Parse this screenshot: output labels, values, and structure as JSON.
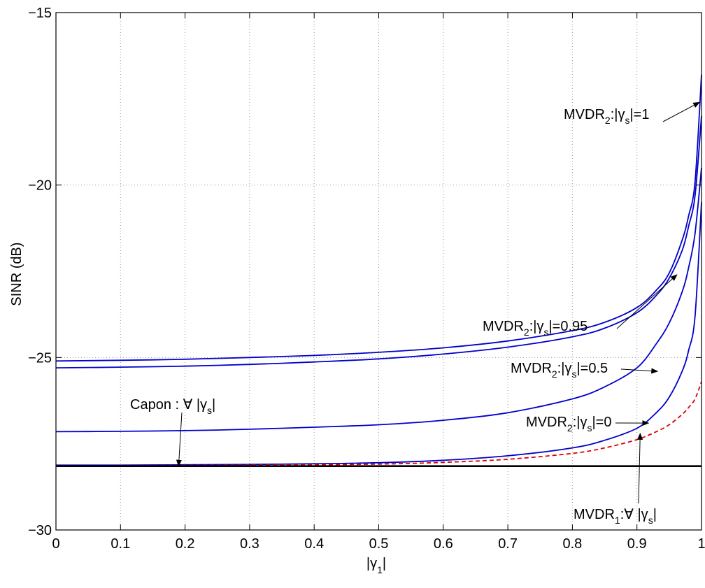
{
  "chart_data": {
    "type": "line",
    "title": "",
    "xlabel": {
      "main": "|γ",
      "sub": "1",
      "suffix": "|"
    },
    "ylabel": "SINR (dB)",
    "xlim": [
      0,
      1
    ],
    "ylim": [
      -30,
      -15
    ],
    "xticks": [
      "0",
      "0.1",
      "0.2",
      "0.3",
      "0.4",
      "0.5",
      "0.6",
      "0.7",
      "0.8",
      "0.9",
      "1"
    ],
    "yticks": [
      "-30",
      "-25",
      "-20",
      "-15"
    ],
    "grid": true,
    "colors": {
      "mvdr2": "#0000cc",
      "mvdr1": "#dd0000",
      "capon": "#000000"
    },
    "x": [
      0,
      0.1,
      0.2,
      0.3,
      0.4,
      0.5,
      0.6,
      0.7,
      0.8,
      0.85,
      0.9,
      0.93,
      0.95,
      0.97,
      0.98,
      0.99,
      1.0
    ],
    "series": [
      {
        "key": "g1",
        "style": "solid",
        "color": "#0000cc",
        "values": [
          -25.1,
          -25.08,
          -25.05,
          -25.0,
          -24.94,
          -24.85,
          -24.72,
          -24.52,
          -24.22,
          -23.98,
          -23.55,
          -23.05,
          -22.55,
          -21.6,
          -20.9,
          -19.9,
          -16.8
        ]
      },
      {
        "key": "g095",
        "style": "solid",
        "color": "#0000cc",
        "values": [
          -25.3,
          -25.28,
          -25.25,
          -25.2,
          -25.13,
          -25.04,
          -24.9,
          -24.7,
          -24.4,
          -24.15,
          -23.7,
          -23.2,
          -22.7,
          -21.9,
          -21.2,
          -20.3,
          -18.0
        ]
      },
      {
        "key": "g05",
        "style": "solid",
        "color": "#0000cc",
        "values": [
          -27.15,
          -27.14,
          -27.12,
          -27.08,
          -27.02,
          -26.95,
          -26.82,
          -26.6,
          -26.2,
          -25.85,
          -25.3,
          -24.6,
          -24.0,
          -23.1,
          -22.4,
          -21.4,
          -19.5
        ]
      },
      {
        "key": "g0",
        "style": "solid",
        "color": "#0000cc",
        "values": [
          -28.12,
          -28.12,
          -28.11,
          -28.1,
          -28.08,
          -28.05,
          -27.98,
          -27.85,
          -27.62,
          -27.4,
          -27.05,
          -26.6,
          -26.15,
          -25.4,
          -24.8,
          -23.8,
          -20.5
        ]
      },
      {
        "key": "mvdr1",
        "style": "dashed",
        "color": "#dd0000",
        "values": [
          -28.14,
          -28.14,
          -28.13,
          -28.12,
          -28.11,
          -28.09,
          -28.04,
          -27.95,
          -27.78,
          -27.62,
          -27.38,
          -27.15,
          -26.95,
          -26.65,
          -26.45,
          -26.2,
          -25.7
        ]
      },
      {
        "key": "capon",
        "style": "solid",
        "color": "#000000",
        "values": [
          -28.15,
          -28.15,
          -28.15,
          -28.15,
          -28.15,
          -28.15,
          -28.15,
          -28.15,
          -28.15,
          -28.15,
          -28.15,
          -28.15,
          -28.15,
          -28.15,
          -28.15,
          -28.15,
          -28.15
        ]
      }
    ],
    "annotations": [
      {
        "key": "a_g1",
        "main": "MVDR",
        "sub": "2",
        "rest": ":|γ",
        "sub2": "s",
        "tail": "|=1",
        "point": [
          0.997,
          -17.6
        ]
      },
      {
        "key": "a_g095",
        "main": "MVDR",
        "sub": "2",
        "rest": ":|γ",
        "sub2": "s",
        "tail": "|=0.95",
        "point": [
          0.962,
          -22.6
        ]
      },
      {
        "key": "a_g05",
        "main": "MVDR",
        "sub": "2",
        "rest": ":|γ",
        "sub2": "s",
        "tail": "|=0.5",
        "point": [
          0.932,
          -25.4
        ]
      },
      {
        "key": "a_g0",
        "main": "MVDR",
        "sub": "2",
        "rest": ":|γ",
        "sub2": "s",
        "tail": "|=0",
        "point": [
          0.918,
          -26.9
        ]
      },
      {
        "key": "a_capon",
        "main": "Capon : ∀ |γ",
        "sub": "",
        "rest": "",
        "sub2": "s",
        "tail": "|",
        "point": [
          0.19,
          -28.15
        ]
      },
      {
        "key": "a_mvdr1",
        "main": "MVDR",
        "sub": "1",
        "rest": ":∀ |γ",
        "sub2": "s",
        "tail": "|",
        "point": [
          0.905,
          -27.2
        ]
      }
    ]
  }
}
